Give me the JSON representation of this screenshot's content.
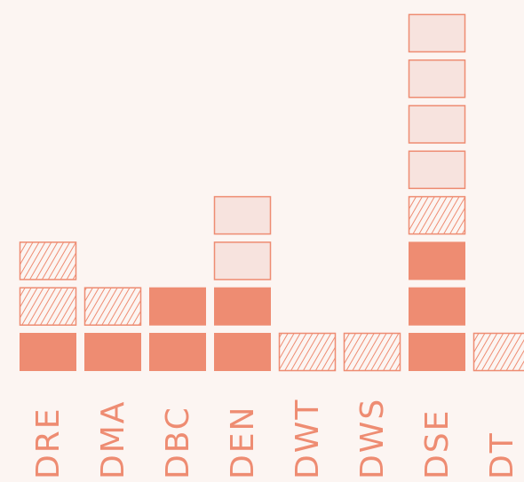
{
  "chart_data": {
    "type": "bar",
    "subtype": "stacked-unit-blocks",
    "title": "",
    "xlabel": "",
    "ylabel": "",
    "categories": [
      "DRE",
      "DMA",
      "DBC",
      "DEN",
      "DWT",
      "DWS",
      "DSE",
      "DT"
    ],
    "series": [
      {
        "style": "solid",
        "values": [
          1,
          1,
          2,
          2,
          0,
          0,
          3,
          0
        ]
      },
      {
        "style": "hatched",
        "values": [
          2,
          1,
          0,
          0,
          1,
          1,
          1,
          1
        ]
      },
      {
        "style": "light",
        "values": [
          0,
          0,
          0,
          2,
          0,
          0,
          4,
          0
        ]
      }
    ],
    "grid": false,
    "legend": "none"
  },
  "colors": {
    "background": "#fcf5f2",
    "solid_fill": "#ee8c72",
    "hatch_stroke": "#ee8c72",
    "light_fill": "#f7e3de",
    "light_stroke": "#ee8c72",
    "label": "#ee8c72"
  }
}
